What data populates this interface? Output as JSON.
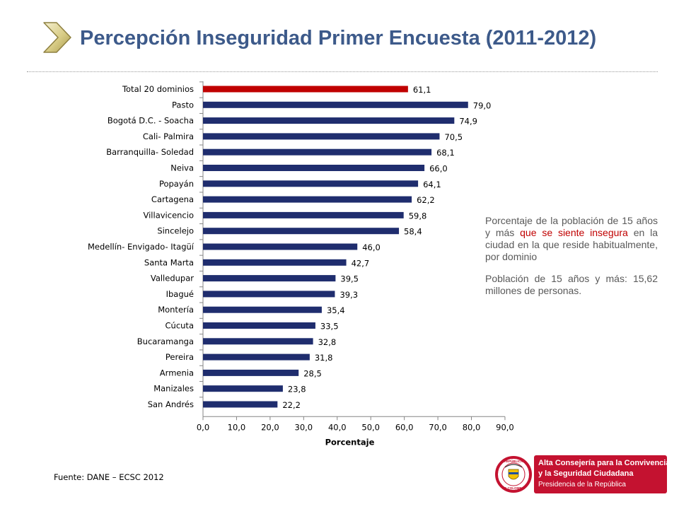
{
  "title": "Percepción Inseguridad Primer Encuesta (2011-2012)",
  "side_text": {
    "p1_start": "Porcentaje de la población de 15 años y más ",
    "p1_highlight": "que se siente insegura",
    "p1_end": " en la ciudad en la que reside habitualmente, por dominio",
    "p2": "Población de 15 años y más: 15,62 millones de personas."
  },
  "source": "Fuente: DANE – ECSC 2012",
  "logo": {
    "line1": "Alta Consejería para la Convivencia",
    "line2": "y la Seguridad Ciudadana",
    "line3": "Presidencia de la República",
    "seal_top": "REPÚBLICA",
    "seal_bottom": "DE COLOMBIA"
  },
  "colors": {
    "bar": "#1f2d6e",
    "highlight_bar": "#c00000",
    "title": "#3d5a8a"
  },
  "chart_data": {
    "type": "bar",
    "orientation": "horizontal",
    "categories": [
      "Total 20 dominios",
      "Pasto",
      "Bogotá D.C. - Soacha",
      "Cali- Palmira",
      "Barranquilla- Soledad",
      "Neiva",
      "Popayán",
      "Cartagena",
      "Villavicencio",
      "Sincelejo",
      "Medellín- Envigado- Itagüí",
      "Santa Marta",
      "Valledupar",
      "Ibagué",
      "Montería",
      "Cúcuta",
      "Bucaramanga",
      "Pereira",
      "Armenia",
      "Manizales",
      "San Andrés"
    ],
    "values": [
      61.1,
      79.0,
      74.9,
      70.5,
      68.1,
      66.0,
      64.1,
      62.2,
      59.8,
      58.4,
      46.0,
      42.7,
      39.5,
      39.3,
      35.4,
      33.5,
      32.8,
      31.8,
      28.5,
      23.8,
      22.2
    ],
    "value_labels": [
      "61,1",
      "79,0",
      "74,9",
      "70,5",
      "68,1",
      "66,0",
      "64,1",
      "62,2",
      "59,8",
      "58,4",
      "46,0",
      "42,7",
      "39,5",
      "39,3",
      "35,4",
      "33,5",
      "32,8",
      "31,8",
      "28,5",
      "23,8",
      "22,2"
    ],
    "highlight_index": 0,
    "xlabel": "Porcentaje",
    "xlim": [
      0,
      90
    ],
    "xticks": [
      "0,0",
      "10,0",
      "20,0",
      "30,0",
      "40,0",
      "50,0",
      "60,0",
      "70,0",
      "80,0",
      "90,0"
    ],
    "grid": false
  }
}
